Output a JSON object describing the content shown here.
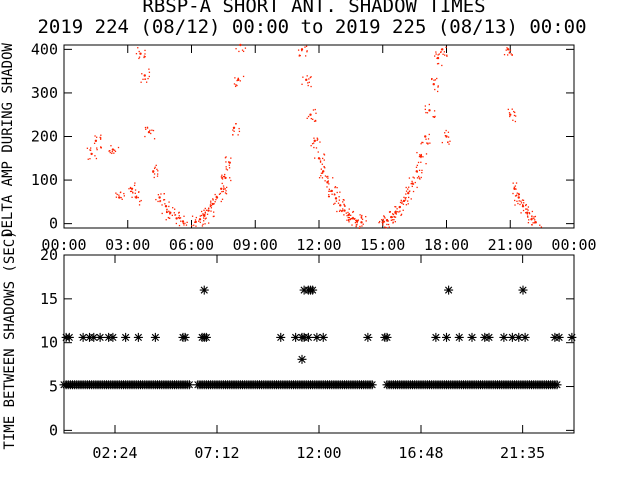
{
  "title": "RBSP-A SHORT ANT. SHADOW TIMES",
  "subtitle": "2019 224 (08/12) 00:00 to 2019 225 (08/13) 00:00",
  "chart_data": [
    {
      "type": "scatter",
      "ylabel": "DELTA AMP DURING SHADOW",
      "ylim": [
        -10,
        410
      ],
      "yticks": [
        "0",
        "100",
        "200",
        "300",
        "400"
      ],
      "yticks_values": [
        0,
        100,
        200,
        300,
        400
      ],
      "xticks": [
        "00:00",
        "03:00",
        "06:00",
        "09:00",
        "12:00",
        "15:00",
        "18:00",
        "21:00",
        "00:00"
      ],
      "xticks_hours": [
        0,
        3,
        6,
        9,
        12,
        15,
        18,
        21,
        24
      ],
      "xlim_hours": [
        0,
        24
      ],
      "color": "#ff2200",
      "series": [
        {
          "x": [
            1.3,
            1.5,
            2.3,
            2.6,
            3.2,
            3.4,
            3.6,
            3.8,
            4.0,
            4.2,
            4.5,
            4.8,
            5.0,
            5.3,
            5.6
          ],
          "y": [
            160,
            190,
            170,
            60,
            80,
            60,
            390,
            340,
            210,
            120,
            60,
            40,
            25,
            12,
            5
          ]
        },
        {
          "x": [
            6.2,
            6.4,
            6.6,
            6.8,
            7.0,
            7.2,
            7.4,
            7.6,
            7.8,
            8.0,
            8.2,
            8.3
          ],
          "y": [
            4,
            10,
            18,
            30,
            45,
            60,
            80,
            105,
            140,
            220,
            330,
            410
          ]
        },
        {
          "x": [
            11.2,
            11.4,
            11.6,
            11.8,
            12.0,
            12.2,
            12.4,
            12.6,
            12.8,
            13.0,
            13.2,
            13.4,
            13.6,
            13.8,
            14.0
          ],
          "y": [
            400,
            330,
            250,
            190,
            150,
            120,
            95,
            75,
            58,
            42,
            30,
            20,
            12,
            6,
            3
          ]
        },
        {
          "x": [
            15.0,
            15.2,
            15.4,
            15.6,
            15.8,
            16.0,
            16.2,
            16.4,
            16.6,
            16.8,
            17.0,
            17.2,
            17.4,
            17.6,
            17.8,
            18.0
          ],
          "y": [
            3,
            8,
            15,
            25,
            38,
            52,
            70,
            92,
            120,
            155,
            200,
            260,
            320,
            380,
            400,
            200
          ]
        },
        {
          "x": [
            20.9,
            21.0,
            21.2,
            21.4,
            21.6,
            21.8,
            22.0,
            22.2
          ],
          "y": [
            400,
            250,
            80,
            60,
            40,
            25,
            10,
            3
          ]
        }
      ]
    },
    {
      "type": "scatter",
      "ylabel": "TIME BETWEEN SHADOWS (SEC)",
      "ylim": [
        -0.3,
        20
      ],
      "yticks": [
        "0",
        "5",
        "10",
        "15",
        "20"
      ],
      "yticks_values": [
        0,
        5,
        10,
        15,
        20
      ],
      "xticks": [
        "02:24",
        "07:12",
        "12:00",
        "16:48",
        "21:35"
      ],
      "xticks_hours": [
        2.4,
        7.2,
        12.0,
        16.8,
        21.583
      ],
      "xlim_hours": [
        0,
        24
      ],
      "marker": "*",
      "baseline_value": 5.2,
      "baseline_ranges_hours": [
        [
          0.0,
          5.9
        ],
        [
          6.3,
          14.5
        ],
        [
          15.2,
          23.3
        ]
      ],
      "series": [
        {
          "name": "",
          "x": [
            0.1,
            0.25,
            0.9,
            1.2,
            1.4,
            1.7,
            2.1,
            2.3,
            2.9,
            3.5,
            4.3,
            5.6,
            5.7,
            6.5,
            6.6,
            6.7,
            10.2,
            10.9,
            11.2,
            11.3,
            11.5,
            11.9,
            12.2,
            14.3,
            15.1,
            15.2,
            17.5,
            18.0,
            18.6,
            19.2,
            19.8,
            20.0,
            20.7,
            21.1,
            21.4,
            21.7,
            23.1,
            23.3,
            23.9
          ],
          "y": [
            10.6,
            10.6,
            10.6,
            10.6,
            10.6,
            10.6,
            10.6,
            10.6,
            10.6,
            10.6,
            10.6,
            10.6,
            10.6,
            10.6,
            10.6,
            10.6,
            10.6,
            10.6,
            10.6,
            10.6,
            10.6,
            10.6,
            10.6,
            10.6,
            10.6,
            10.6,
            10.6,
            10.6,
            10.6,
            10.6,
            10.6,
            10.6,
            10.6,
            10.6,
            10.6,
            10.6,
            10.6,
            10.6,
            10.6
          ]
        },
        {
          "name": "",
          "x": [
            6.6,
            11.3,
            11.5,
            11.6,
            11.7,
            18.1,
            21.6
          ],
          "y": [
            16,
            16,
            16,
            16,
            16,
            16,
            16
          ]
        },
        {
          "name": "",
          "x": [
            11.2
          ],
          "y": [
            8.1
          ]
        }
      ]
    }
  ]
}
